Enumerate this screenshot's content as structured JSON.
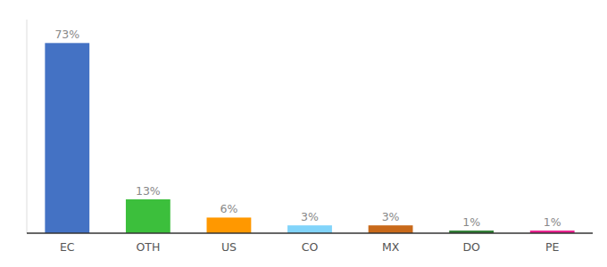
{
  "chart_data": {
    "type": "bar",
    "categories": [
      "EC",
      "OTH",
      "US",
      "CO",
      "MX",
      "DO",
      "PE"
    ],
    "values": [
      73,
      13,
      6,
      3,
      3,
      1,
      1
    ],
    "value_labels": [
      "73%",
      "13%",
      "6%",
      "3%",
      "3%",
      "1%",
      "1%"
    ],
    "colors": [
      "#4472C4",
      "#3CBF3C",
      "#FF9800",
      "#81D4FA",
      "#C8691A",
      "#2E7D32",
      "#E91E8C"
    ],
    "ylim": [
      0,
      82
    ],
    "data_labels": true,
    "tick_labels": "x",
    "grid": false
  }
}
